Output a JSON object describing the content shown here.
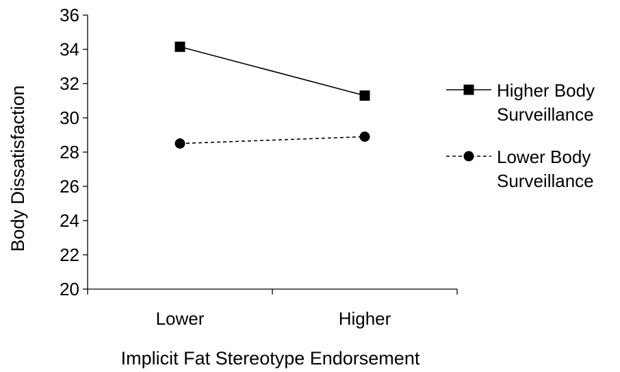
{
  "chart_data": {
    "type": "line",
    "title": "",
    "xlabel": "Implicit Fat Stereotype Endorsement",
    "ylabel": "Body Dissatisfaction",
    "categories": [
      "Lower",
      "Higher"
    ],
    "ylim": [
      20,
      36
    ],
    "yticks": [
      "20",
      "22",
      "24",
      "26",
      "28",
      "30",
      "32",
      "34",
      "36"
    ],
    "grid": false,
    "legend_position": "right",
    "series": [
      {
        "name_lines": [
          "Higher Body",
          "Surveillance"
        ],
        "values": [
          34.15,
          31.3
        ],
        "marker": "square",
        "line_style": "solid",
        "color": "#000000"
      },
      {
        "name_lines": [
          "Lower Body",
          "Surveillance"
        ],
        "values": [
          28.5,
          28.9
        ],
        "marker": "circle",
        "line_style": "dashed",
        "color": "#000000"
      }
    ]
  }
}
